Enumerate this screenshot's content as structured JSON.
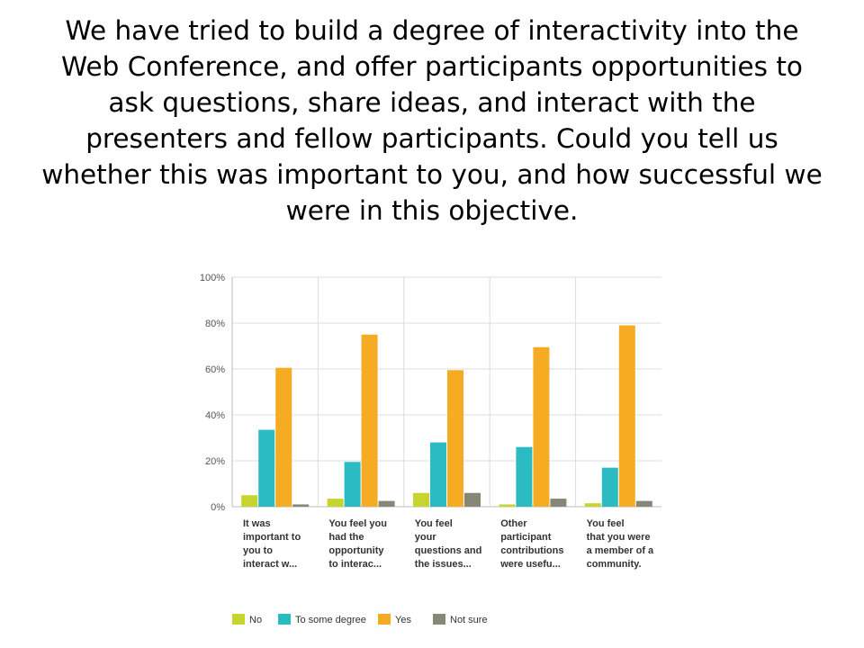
{
  "slide": {
    "title": "We have tried to build a degree of interactivity into the Web Conference, and offer participants opportunities to ask questions, share ideas, and interact with the presenters and fellow participants. Could you tell us whether this was important to you, and how successful we were in this objective."
  },
  "chart_data": {
    "type": "bar",
    "categories": [
      [
        "It was",
        "important to",
        "you to",
        "interact w..."
      ],
      [
        "You feel you",
        "had the",
        "opportunity",
        "to interac..."
      ],
      [
        "You feel",
        "your",
        "questions and",
        "the issues..."
      ],
      [
        "Other",
        "participant",
        "contributions",
        "were usefu..."
      ],
      [
        "You feel",
        "that you were",
        "a member of a",
        "community."
      ]
    ],
    "series": [
      {
        "name": "No",
        "color": "#c8d42e",
        "values": [
          5,
          3.5,
          6,
          1,
          1.5
        ]
      },
      {
        "name": "To some degree",
        "color": "#2bbcc3",
        "values": [
          33.5,
          19.5,
          28,
          26,
          17
        ]
      },
      {
        "name": "Yes",
        "color": "#f5ac22",
        "values": [
          60.5,
          75,
          59.5,
          69.5,
          79
        ]
      },
      {
        "name": "Not sure",
        "color": "#878777",
        "values": [
          1,
          2.5,
          6,
          3.5,
          2.5
        ]
      }
    ],
    "yticks": [
      "0%",
      "20%",
      "40%",
      "60%",
      "80%",
      "100%"
    ],
    "ylim": [
      0,
      100
    ],
    "grid": true,
    "legend": "bottom"
  }
}
